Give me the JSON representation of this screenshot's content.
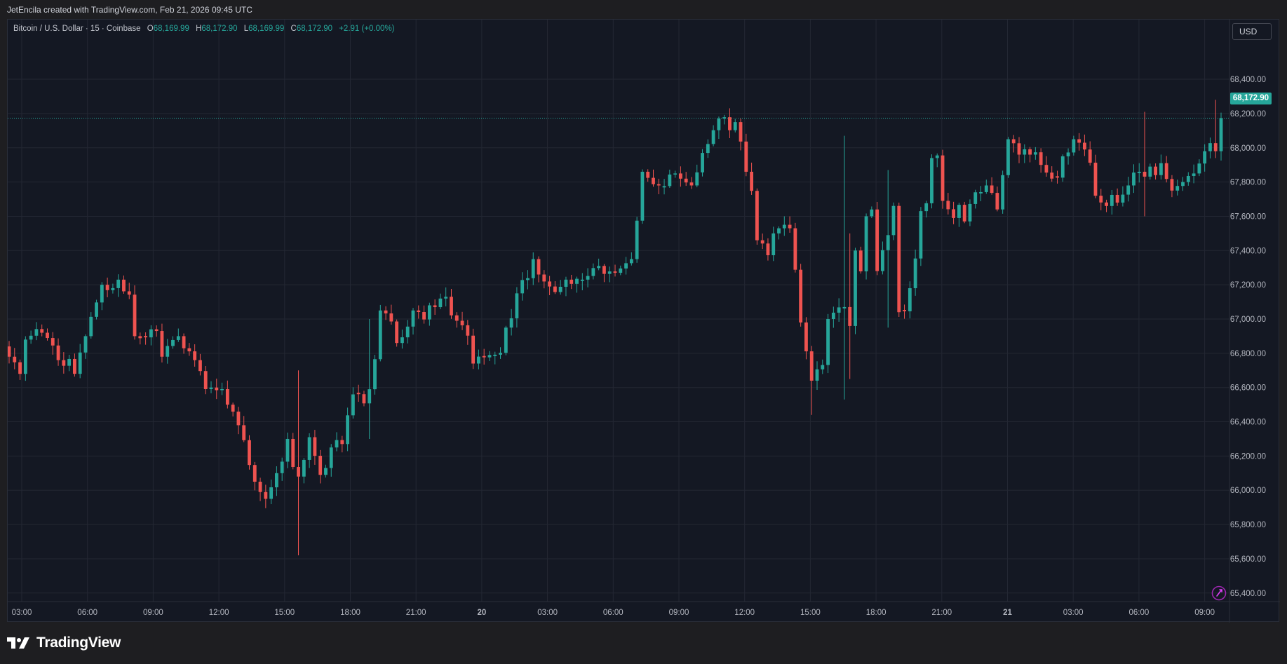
{
  "credit": "JetEncila created with TradingView.com, Feb 21, 2026 09:45 UTC",
  "brand": "TradingView",
  "currency_button": "USD",
  "legend": {
    "symbol": "Bitcoin / U.S. Dollar · 15 · Coinbase",
    "o_label": "O",
    "o": "68,169.99",
    "h_label": "H",
    "h": "68,172.90",
    "l_label": "L",
    "l": "68,169.99",
    "c_label": "C",
    "c": "68,172.90",
    "change": "+2.91 (+0.00%)"
  },
  "last_price_label": "68,172.90",
  "colors": {
    "up": "#26a69a",
    "down": "#ef5350",
    "background": "#141823",
    "grid": "#232733",
    "axis_text": "#b2b5be"
  },
  "chart_data": {
    "type": "candlestick",
    "symbol": "Bitcoin / U.S. Dollar",
    "interval": "15",
    "exchange": "Coinbase",
    "ylim": [
      65350,
      68650
    ],
    "y_ticks": [
      65400,
      65600,
      65800,
      66000,
      66200,
      66400,
      66600,
      66800,
      67000,
      67200,
      67400,
      67600,
      67800,
      68000,
      68200,
      68400
    ],
    "y_tick_labels": [
      "65,400.00",
      "65,600.00",
      "65,800.00",
      "66,000.00",
      "66,200.00",
      "66,400.00",
      "66,600.00",
      "66,800.00",
      "67,000.00",
      "67,200.00",
      "67,400.00",
      "67,600.00",
      "67,800.00",
      "68,000.00",
      "68,200.00",
      "68,400.00"
    ],
    "x_ticks": [
      "03:00",
      "06:00",
      "09:00",
      "12:00",
      "15:00",
      "18:00",
      "21:00",
      "20",
      "03:00",
      "06:00",
      "09:00",
      "12:00",
      "15:00",
      "18:00",
      "21:00",
      "21",
      "03:00",
      "06:00",
      "09:00"
    ],
    "x_tick_bold": [
      false,
      false,
      false,
      false,
      false,
      false,
      false,
      true,
      false,
      false,
      false,
      false,
      false,
      false,
      false,
      true,
      false,
      false,
      false
    ],
    "last_price": 68172.9,
    "grid": true,
    "anchors": [
      [
        0,
        66900,
        66780
      ],
      [
        3,
        66650,
        66880
      ],
      [
        6,
        66920,
        66920
      ],
      [
        9,
        66790,
        66760
      ],
      [
        12,
        66730,
        66680
      ],
      [
        14,
        66900,
        66900
      ],
      [
        17,
        67170,
        67200
      ],
      [
        20,
        67140,
        67230
      ],
      [
        23,
        67090,
        66900
      ],
      [
        26,
        66920,
        66940
      ],
      [
        28,
        66880,
        66780
      ],
      [
        31,
        66890,
        66900
      ],
      [
        34,
        66770,
        66760
      ],
      [
        37,
        66520,
        66600
      ],
      [
        40,
        66600,
        66500
      ],
      [
        42,
        66360,
        66380
      ],
      [
        45,
        66040,
        66050
      ],
      [
        47,
        65940,
        65950
      ],
      [
        49,
        66040,
        66100
      ],
      [
        51,
        66280,
        66300
      ],
      [
        53,
        66020,
        66080
      ],
      [
        55,
        66300,
        66310
      ],
      [
        57,
        66110,
        66090
      ],
      [
        59,
        66170,
        66250
      ],
      [
        61,
        66270,
        66270
      ],
      [
        63,
        66610,
        66560
      ],
      [
        66,
        66510,
        66590
      ],
      [
        68,
        66950,
        67050
      ],
      [
        71,
        66920,
        66860
      ],
      [
        74,
        67000,
        67050
      ],
      [
        77,
        66950,
        67080
      ],
      [
        80,
        67130,
        67130
      ],
      [
        82,
        66970,
        66990
      ],
      [
        85,
        66870,
        66740
      ],
      [
        88,
        66820,
        66790
      ],
      [
        91,
        66820,
        66950
      ],
      [
        93,
        67070,
        67150
      ],
      [
        96,
        67290,
        67350
      ],
      [
        99,
        67180,
        67190
      ],
      [
        102,
        67170,
        67230
      ],
      [
        105,
        67260,
        67230
      ],
      [
        108,
        67340,
        67310
      ],
      [
        111,
        67230,
        67270
      ],
      [
        114,
        67350,
        67350
      ],
      [
        116,
        67750,
        67860
      ],
      [
        119,
        67730,
        67780
      ],
      [
        122,
        67870,
        67850
      ],
      [
        125,
        67770,
        67780
      ],
      [
        127,
        67910,
        67970
      ],
      [
        130,
        68170,
        68170
      ],
      [
        133,
        68100,
        68150
      ],
      [
        135,
        67920,
        67860
      ],
      [
        137,
        67580,
        67460
      ],
      [
        140,
        67380,
        67500
      ],
      [
        143,
        67560,
        67530
      ],
      [
        145,
        67060,
        66980
      ],
      [
        147,
        66600,
        66640
      ],
      [
        150,
        66800,
        67000
      ],
      [
        153,
        67050,
        67070
      ],
      [
        155,
        66850,
        67400
      ],
      [
        157,
        67200,
        67600
      ],
      [
        159,
        67670,
        67280
      ],
      [
        161,
        67500,
        67490
      ],
      [
        163,
        67780,
        67040
      ],
      [
        165,
        67040,
        67180
      ],
      [
        167,
        67500,
        67630
      ],
      [
        169,
        67780,
        67940
      ],
      [
        171,
        67910,
        67690
      ],
      [
        173,
        67650,
        67590
      ],
      [
        175,
        67780,
        67570
      ],
      [
        177,
        67780,
        67740
      ],
      [
        179,
        67700,
        67780
      ],
      [
        181,
        67720,
        67640
      ],
      [
        183,
        67990,
        68050
      ],
      [
        185,
        68040,
        67960
      ],
      [
        187,
        67980,
        67960
      ],
      [
        189,
        68000,
        67900
      ],
      [
        191,
        67820,
        67820
      ],
      [
        193,
        67900,
        67950
      ],
      [
        195,
        68020,
        68050
      ],
      [
        197,
        67980,
        67990
      ],
      [
        199,
        67790,
        67720
      ],
      [
        201,
        67600,
        67660
      ],
      [
        203,
        67720,
        67680
      ],
      [
        205,
        67760,
        67780
      ],
      [
        207,
        67880,
        67860
      ],
      [
        209,
        67830,
        67890
      ],
      [
        211,
        67860,
        67910
      ],
      [
        213,
        67760,
        67750
      ],
      [
        215,
        67800,
        67800
      ],
      [
        217,
        67850,
        67850
      ],
      [
        219,
        67940,
        67980
      ],
      [
        221,
        68050,
        67980
      ],
      [
        222,
        67980,
        68172.9
      ]
    ],
    "notable_wicks": [
      [
        53,
        65620,
        66700
      ],
      [
        66,
        66300,
        67000
      ],
      [
        147,
        66440,
        66800
      ],
      [
        153,
        66530,
        68070
      ],
      [
        154,
        66650,
        67500
      ],
      [
        161,
        66950,
        67870
      ],
      [
        208,
        67600,
        68210
      ],
      [
        221,
        67940,
        68280
      ]
    ]
  }
}
